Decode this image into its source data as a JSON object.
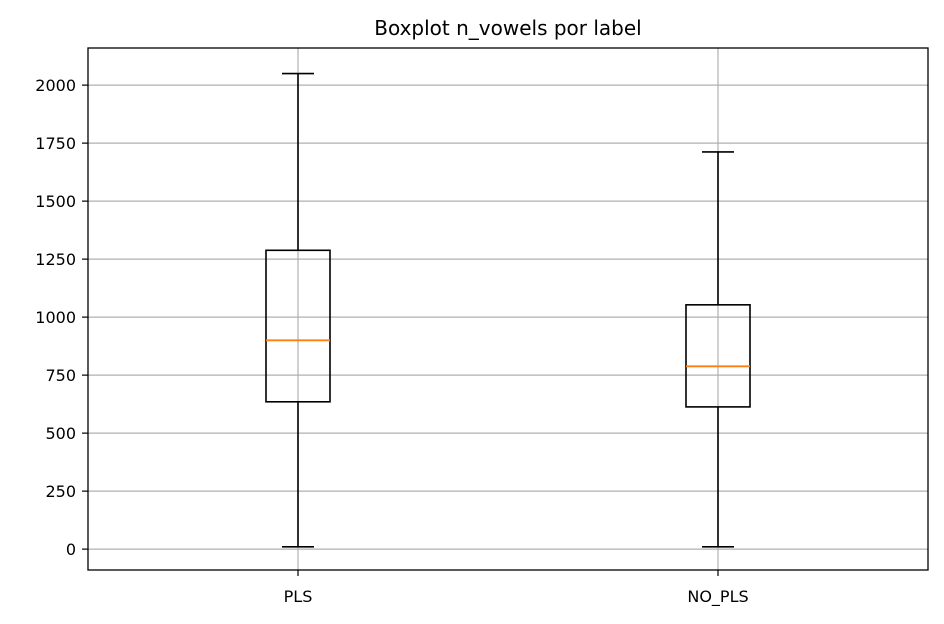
{
  "chart_data": {
    "type": "box",
    "title": "Boxplot n_vowels por label",
    "xlabel": "",
    "ylabel": "",
    "categories": [
      "PLS",
      "NO_PLS"
    ],
    "boxes": [
      {
        "label": "PLS",
        "min": 10,
        "q1": 635,
        "median": 900,
        "q3": 1288,
        "max": 2050
      },
      {
        "label": "NO_PLS",
        "min": 10,
        "q1": 613,
        "median": 788,
        "q3": 1053,
        "max": 1712
      }
    ],
    "ylim": [
      -90,
      2160
    ],
    "yticks": [
      0,
      250,
      500,
      750,
      1000,
      1250,
      1500,
      1750,
      2000
    ],
    "grid": true,
    "colors": {
      "box": "#000000",
      "median": "#ff7f0e",
      "grid": "#b0b0b0",
      "axes": "#000000"
    }
  }
}
